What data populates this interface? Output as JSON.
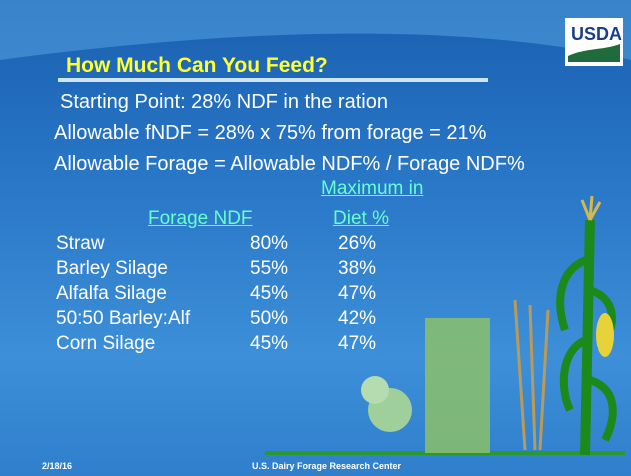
{
  "header": {
    "title": "How Much Can You Feed?",
    "logo": "USDA"
  },
  "lines": [
    "Starting Point: 28% NDF in the ration",
    "Allowable fNDF = 28% x 75% from forage = 21%",
    "Allowable Forage = Allowable NDF% / Forage NDF%"
  ],
  "table": {
    "columns": [
      "Forage NDF",
      [
        "Maximum in",
        "Diet %"
      ]
    ],
    "rows": [
      [
        "Straw",
        "80%",
        "26%"
      ],
      [
        "Barley Silage",
        "55%",
        "38%"
      ],
      [
        "Alfalfa Silage",
        "45%",
        "47%"
      ],
      [
        "50:50 Barley:Alf",
        "50%",
        "42%"
      ],
      [
        "Corn Silage",
        "45%",
        "47%"
      ]
    ]
  },
  "footer": {
    "date": "2/18/16",
    "center": "U.S. Dairy Forage Research Center"
  }
}
